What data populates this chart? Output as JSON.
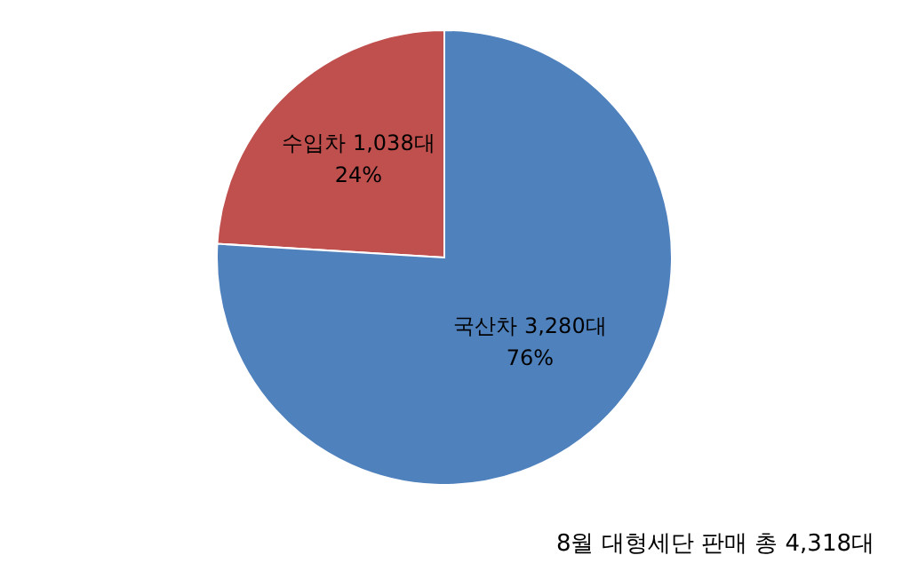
{
  "chart_data": {
    "type": "pie",
    "categories": [
      "수입차",
      "국산차"
    ],
    "values": [
      1038,
      3280
    ],
    "colors": [
      "#c0504d",
      "#4f81bd"
    ],
    "value_labels": [
      "1,038대\n24%",
      "3,280대\n76%"
    ],
    "annotations": [
      "8월 대형세단 판매 총 4,318대"
    ]
  }
}
